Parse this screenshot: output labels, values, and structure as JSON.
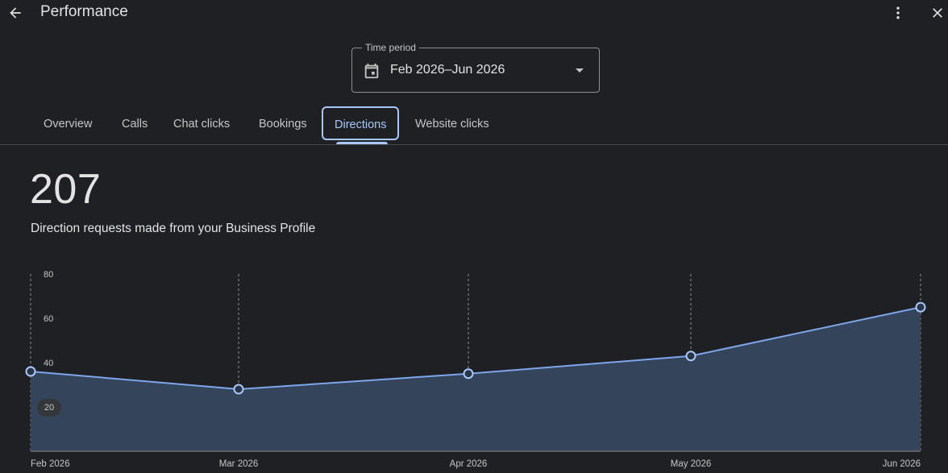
{
  "header": {
    "title": "Performance",
    "back_icon": "arrow-back-icon",
    "more_icon": "more-vert-icon",
    "close_icon": "close-icon"
  },
  "time_period": {
    "label": "Time period",
    "value": "Feb 2026–Jun 2026",
    "icon": "calendar-icon"
  },
  "tabs": [
    {
      "label": "Overview",
      "active": false
    },
    {
      "label": "Calls",
      "active": false
    },
    {
      "label": "Chat clicks",
      "active": false
    },
    {
      "label": "Bookings",
      "active": false
    },
    {
      "label": "Directions",
      "active": true
    },
    {
      "label": "Website clicks",
      "active": false
    }
  ],
  "summary": {
    "total": "207",
    "description": "Direction requests made from your Business Profile"
  },
  "colors": {
    "background": "#1f2023",
    "accent": "#a8c7fa",
    "line": "#7ea6ea",
    "area_fill": "#34445a"
  },
  "chart_data": {
    "type": "area",
    "categories": [
      "Feb 2026",
      "Mar 2026",
      "Apr 2026",
      "May 2026",
      "Jun 2026"
    ],
    "values": [
      36,
      28,
      35,
      43,
      65
    ],
    "y_ticks": [
      "80",
      "60",
      "40",
      "20"
    ],
    "ylim": [
      0,
      80
    ],
    "grid": "vertical-dashed"
  }
}
